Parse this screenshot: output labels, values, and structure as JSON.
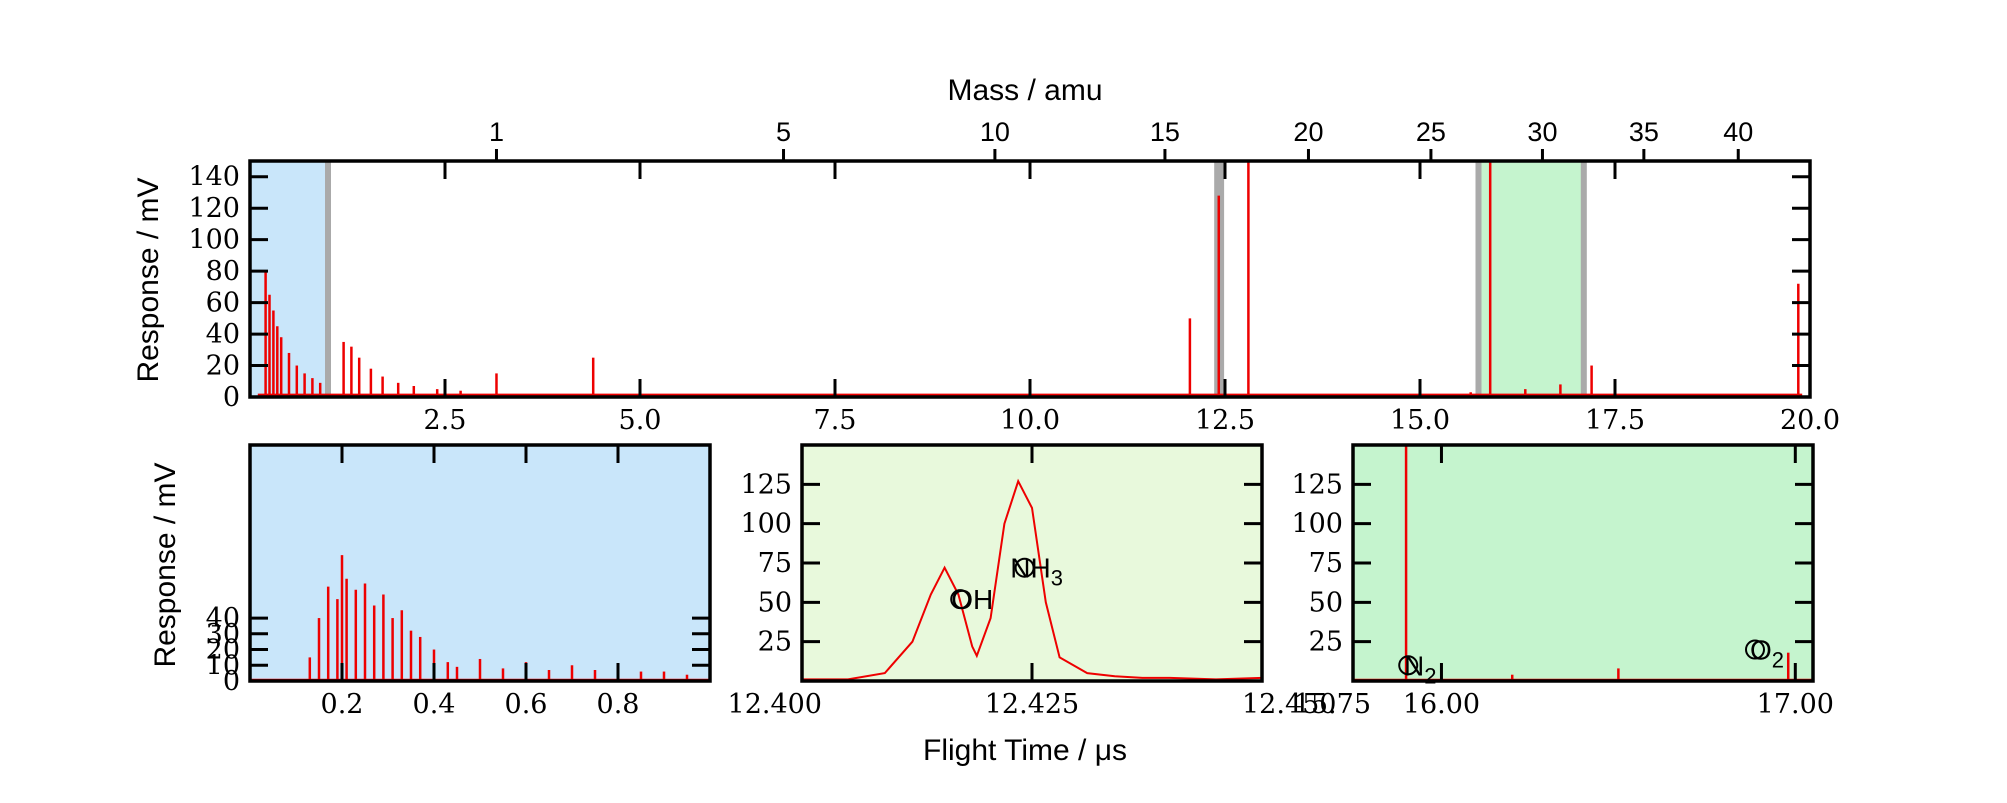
{
  "figure": {
    "top_xlabel": "Mass / amu",
    "bottom_xlabel": "Flight Time / μs"
  },
  "colors": {
    "trace": "#ee0000",
    "blue_region": "#c9e6fa",
    "green_light": "#e8f9dc",
    "green_region": "#c5f4ce",
    "marker_band": "#aaaaaa"
  },
  "chart_data": [
    {
      "id": "overview",
      "type": "line",
      "xlabel": "",
      "ylabel": "Response / mV",
      "xlim": [
        0,
        20
      ],
      "ylim": [
        0,
        150
      ],
      "xticks": [
        2.5,
        5.0,
        7.5,
        10.0,
        12.5,
        15.0,
        17.5,
        20.0
      ],
      "xtick_labels": [
        "2.5",
        "5.0",
        "7.5",
        "10.0",
        "12.5",
        "15.0",
        "17.5",
        "20.0"
      ],
      "yticks": [
        0,
        20,
        40,
        60,
        80,
        100,
        120,
        140
      ],
      "ytick_labels": [
        "0",
        "20",
        "40",
        "60",
        "80",
        "100",
        "120",
        "140"
      ],
      "top_axis": {
        "label": "Mass / amu",
        "ticks": [
          1,
          5,
          10,
          15,
          20,
          25,
          30,
          35,
          40
        ],
        "tick_labels": [
          "1",
          "5",
          "10",
          "15",
          "20",
          "25",
          "30",
          "35",
          "40"
        ],
        "tick_positions_us": [
          3.16,
          6.84,
          9.55,
          11.73,
          13.57,
          15.14,
          16.57,
          17.87,
          19.08
        ]
      },
      "regions": [
        {
          "name": "blue",
          "x": [
            0,
            1.0
          ]
        },
        {
          "name": "green",
          "x": [
            15.75,
            17.1
          ]
        }
      ],
      "markers_x": [
        1.0,
        12.4,
        12.45,
        15.75,
        17.1
      ],
      "spikes": [
        {
          "x": 0.2,
          "y": 80
        },
        {
          "x": 0.25,
          "y": 65
        },
        {
          "x": 0.3,
          "y": 55
        },
        {
          "x": 0.35,
          "y": 45
        },
        {
          "x": 0.4,
          "y": 38
        },
        {
          "x": 0.5,
          "y": 28
        },
        {
          "x": 0.6,
          "y": 20
        },
        {
          "x": 0.7,
          "y": 15
        },
        {
          "x": 0.8,
          "y": 12
        },
        {
          "x": 0.9,
          "y": 9
        },
        {
          "x": 1.2,
          "y": 35
        },
        {
          "x": 1.3,
          "y": 32
        },
        {
          "x": 1.4,
          "y": 25
        },
        {
          "x": 1.55,
          "y": 18
        },
        {
          "x": 1.7,
          "y": 13
        },
        {
          "x": 1.9,
          "y": 9
        },
        {
          "x": 2.1,
          "y": 7
        },
        {
          "x": 2.4,
          "y": 5
        },
        {
          "x": 2.7,
          "y": 4
        },
        {
          "x": 3.16,
          "y": 15
        },
        {
          "x": 4.4,
          "y": 25
        },
        {
          "x": 12.05,
          "y": 50
        },
        {
          "x": 12.42,
          "y": 128
        },
        {
          "x": 12.8,
          "y": 150
        },
        {
          "x": 15.65,
          "y": 3
        },
        {
          "x": 15.9,
          "y": 150
        },
        {
          "x": 16.35,
          "y": 5
        },
        {
          "x": 16.8,
          "y": 8
        },
        {
          "x": 17.2,
          "y": 20
        },
        {
          "x": 19.85,
          "y": 72
        }
      ]
    },
    {
      "id": "zoom-blue",
      "type": "bar",
      "xlabel": "",
      "ylabel": "Response / mV",
      "xlim": [
        0,
        1.0
      ],
      "ylim": [
        0,
        150
      ],
      "xticks": [
        0.2,
        0.4,
        0.6,
        0.8
      ],
      "xtick_labels": [
        "0.2",
        "0.4",
        "0.6",
        "0.8"
      ],
      "yticks": [
        0,
        10,
        20,
        30,
        40
      ],
      "ytick_labels": [
        "0",
        "10",
        "20",
        "30",
        "40"
      ],
      "ylabel_visible": true,
      "bars": [
        {
          "x": 0.13,
          "y": 15
        },
        {
          "x": 0.15,
          "y": 40
        },
        {
          "x": 0.17,
          "y": 60
        },
        {
          "x": 0.19,
          "y": 52
        },
        {
          "x": 0.2,
          "y": 80
        },
        {
          "x": 0.21,
          "y": 65
        },
        {
          "x": 0.23,
          "y": 58
        },
        {
          "x": 0.25,
          "y": 62
        },
        {
          "x": 0.27,
          "y": 48
        },
        {
          "x": 0.29,
          "y": 55
        },
        {
          "x": 0.31,
          "y": 40
        },
        {
          "x": 0.33,
          "y": 45
        },
        {
          "x": 0.35,
          "y": 32
        },
        {
          "x": 0.37,
          "y": 28
        },
        {
          "x": 0.4,
          "y": 20
        },
        {
          "x": 0.43,
          "y": 12
        },
        {
          "x": 0.45,
          "y": 9
        },
        {
          "x": 0.5,
          "y": 14
        },
        {
          "x": 0.55,
          "y": 8
        },
        {
          "x": 0.6,
          "y": 12
        },
        {
          "x": 0.65,
          "y": 7
        },
        {
          "x": 0.7,
          "y": 10
        },
        {
          "x": 0.75,
          "y": 7
        },
        {
          "x": 0.8,
          "y": 8
        },
        {
          "x": 0.85,
          "y": 6
        },
        {
          "x": 0.9,
          "y": 6
        },
        {
          "x": 0.95,
          "y": 4
        }
      ]
    },
    {
      "id": "zoom-mid",
      "type": "line",
      "xlabel": "",
      "ylabel": "",
      "xlim": [
        12.4,
        12.45
      ],
      "ylim": [
        0,
        150
      ],
      "xticks": [
        12.4,
        12.425,
        12.45
      ],
      "xtick_labels": [
        "12.400",
        "12.425",
        "12.450"
      ],
      "yticks": [
        25,
        50,
        75,
        100,
        125
      ],
      "ytick_labels": [
        "25",
        "50",
        "75",
        "100",
        "125"
      ],
      "x": [
        12.4,
        12.405,
        12.409,
        12.412,
        12.414,
        12.4155,
        12.417,
        12.4185,
        12.419,
        12.4205,
        12.422,
        12.4235,
        12.425,
        12.4265,
        12.428,
        12.431,
        12.434,
        12.437,
        12.44,
        12.445,
        12.45
      ],
      "y": [
        1,
        1,
        5,
        25,
        55,
        72,
        55,
        22,
        16,
        40,
        100,
        127,
        110,
        50,
        15,
        5,
        3,
        2,
        2,
        1,
        2
      ],
      "annotations": [
        {
          "text": "OH",
          "x": 12.4185,
          "y": 52
        },
        {
          "text": "NH",
          "sub": "3",
          "x": 12.4255,
          "y": 72
        }
      ]
    },
    {
      "id": "zoom-green",
      "type": "line",
      "xlabel": "",
      "ylabel": "",
      "xlim": [
        15.75,
        17.05
      ],
      "ylim": [
        0,
        150
      ],
      "xticks": [
        15.75,
        16.0,
        17.0
      ],
      "xtick_labels": [
        "15.75",
        "16.00",
        "17.00"
      ],
      "yticks": [
        25,
        50,
        75,
        100,
        125
      ],
      "ytick_labels": [
        "25",
        "50",
        "75",
        "100",
        "125"
      ],
      "spikes": [
        {
          "x": 15.9,
          "y": 150
        },
        {
          "x": 16.2,
          "y": 4
        },
        {
          "x": 16.5,
          "y": 8
        },
        {
          "x": 16.98,
          "y": 18
        }
      ],
      "annotations": [
        {
          "text": "N",
          "sub": "2",
          "x": 15.94,
          "y": 10
        },
        {
          "text": "O",
          "sub": "2",
          "x": 16.92,
          "y": 20
        }
      ]
    }
  ]
}
